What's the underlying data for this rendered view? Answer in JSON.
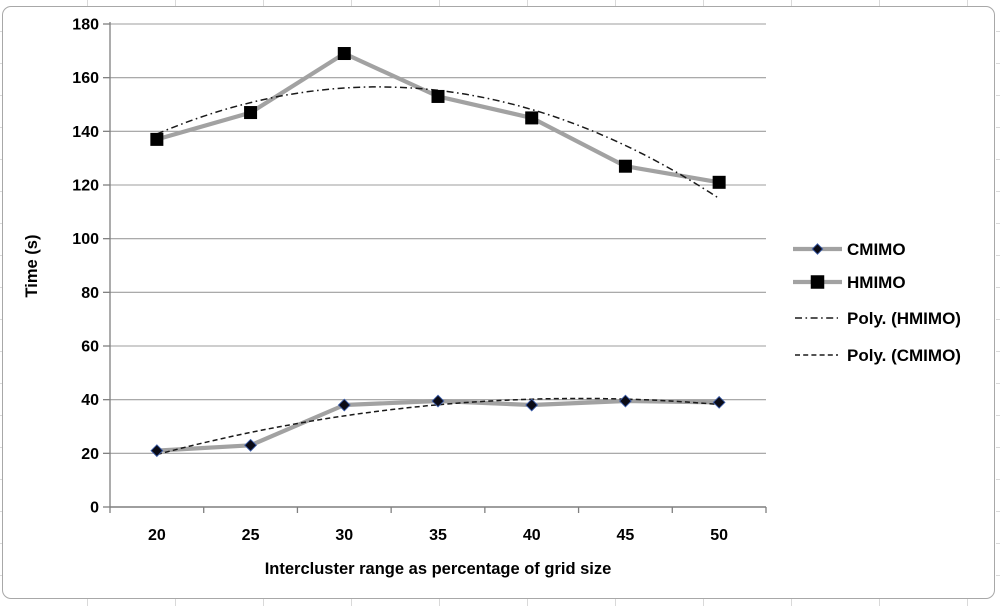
{
  "chart_data": {
    "type": "line",
    "title": "",
    "xlabel": "Intercluster range as percentage of grid size",
    "ylabel": "Time (s)",
    "x": [
      20,
      25,
      30,
      35,
      40,
      45,
      50
    ],
    "x_tick_labels": [
      "20",
      "25",
      "30",
      "35",
      "40",
      "45",
      "50"
    ],
    "y_tick_labels": [
      "0",
      "20",
      "40",
      "60",
      "80",
      "100",
      "120",
      "140",
      "160",
      "180"
    ],
    "ylim": [
      0,
      180
    ],
    "ytick_step": 20,
    "grid": "horizontal",
    "legend_position": "right-middle",
    "series": [
      {
        "name": "CMIMO",
        "marker": "diamond",
        "values": [
          21,
          23,
          38,
          39.5,
          38,
          39.5,
          39
        ]
      },
      {
        "name": "HMIMO",
        "marker": "square",
        "values": [
          137,
          147,
          169,
          153,
          145,
          127,
          121
        ]
      }
    ],
    "trendlines": [
      {
        "name": "Poly. (HMIMO)",
        "source": "HMIMO",
        "type": "polynomial",
        "degree": 2,
        "dash": "dash-dot"
      },
      {
        "name": "Poly. (CMIMO)",
        "source": "CMIMO",
        "type": "polynomial",
        "degree": 2,
        "dash": "dash"
      }
    ]
  },
  "colors": {
    "background": "#ffffff",
    "frame_border": "#a8a8a8",
    "sheet_grid": "#d9d9d9",
    "gridline": "#9e9e9e",
    "axis": "#7f7f7f",
    "series_line": "#a2a2a2",
    "marker_square": "#000000",
    "marker_diamond_fill": "#0b0b16",
    "marker_diamond_edge": "#3a5ba8",
    "trendline": "#1a1a1a",
    "text": "#000000"
  }
}
